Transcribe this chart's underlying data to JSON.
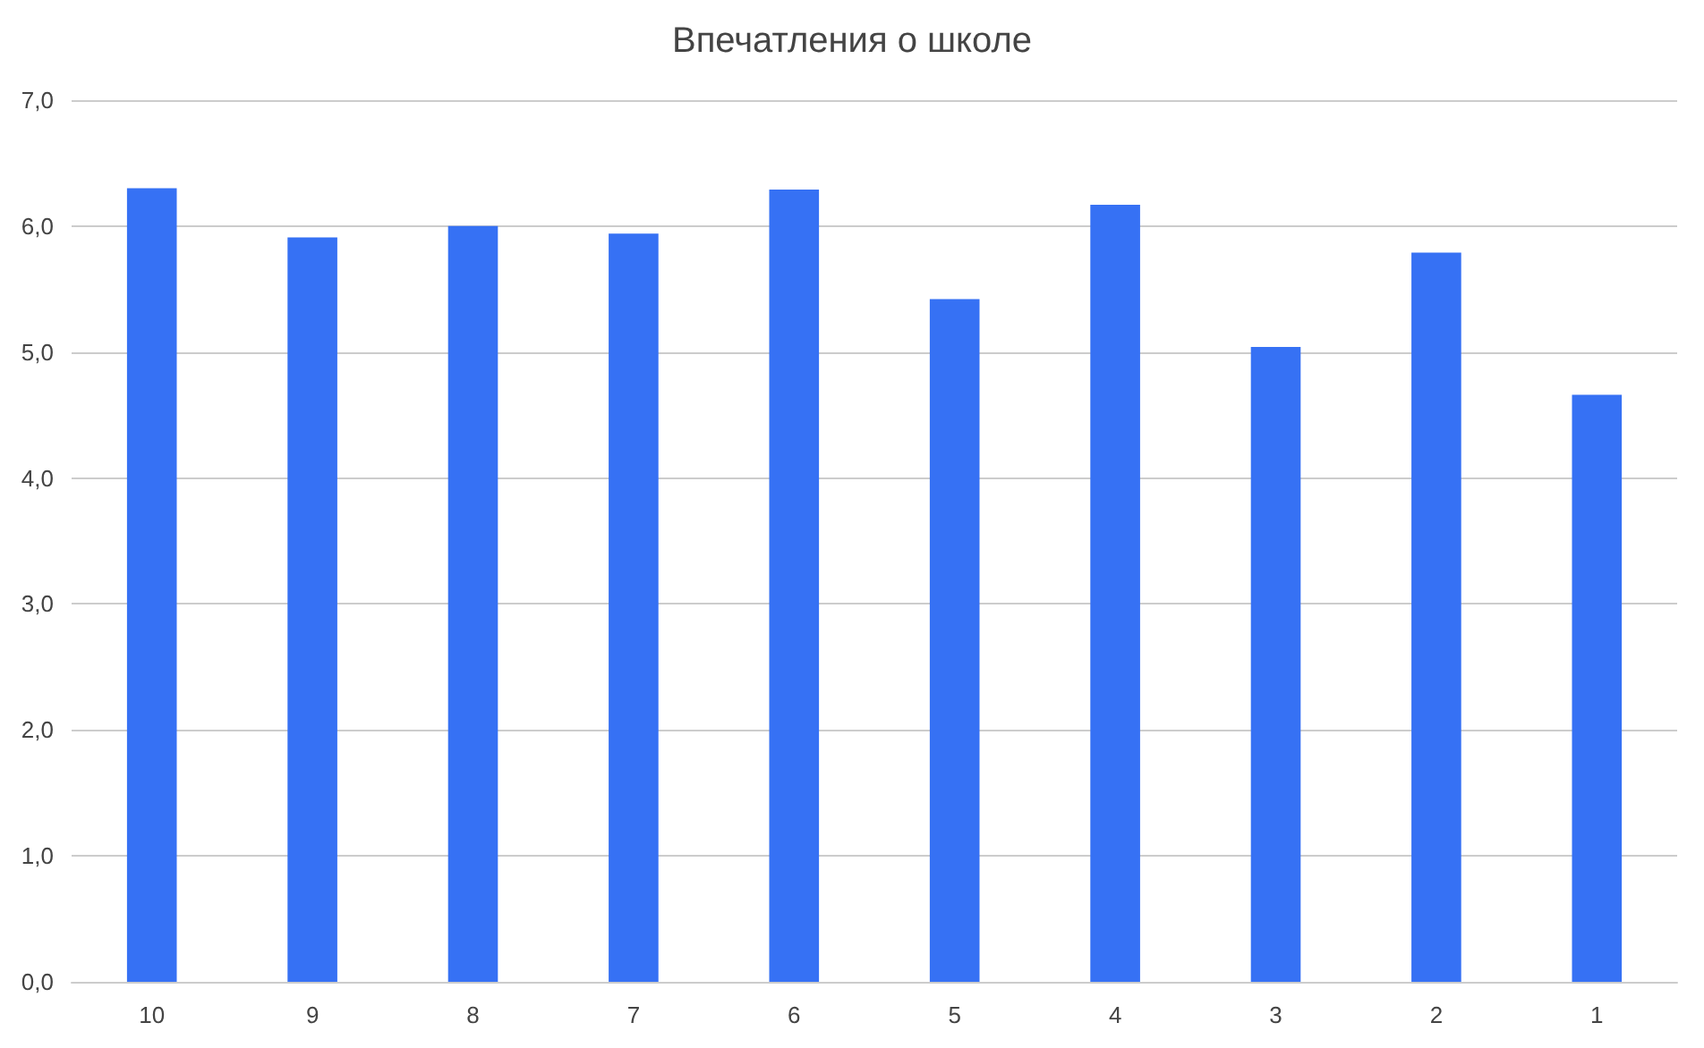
{
  "chart_data": {
    "type": "bar",
    "title": "Впечатления о школе",
    "categories": [
      "10",
      "9",
      "8",
      "7",
      "6",
      "5",
      "4",
      "3",
      "2",
      "1"
    ],
    "values": [
      6.3,
      5.91,
      6.0,
      5.94,
      6.29,
      5.42,
      6.17,
      5.04,
      5.79,
      4.66
    ],
    "color": "#3671f4",
    "ylim": [
      0,
      7
    ],
    "yticks": [
      {
        "value": 0,
        "label": "0,0"
      },
      {
        "value": 1,
        "label": "1,0"
      },
      {
        "value": 2,
        "label": "2,0"
      },
      {
        "value": 3,
        "label": "3,0"
      },
      {
        "value": 4,
        "label": "4,0"
      },
      {
        "value": 5,
        "label": "5,0"
      },
      {
        "value": 6,
        "label": "6,0"
      },
      {
        "value": 7,
        "label": "7,0"
      }
    ],
    "grid": "y"
  }
}
